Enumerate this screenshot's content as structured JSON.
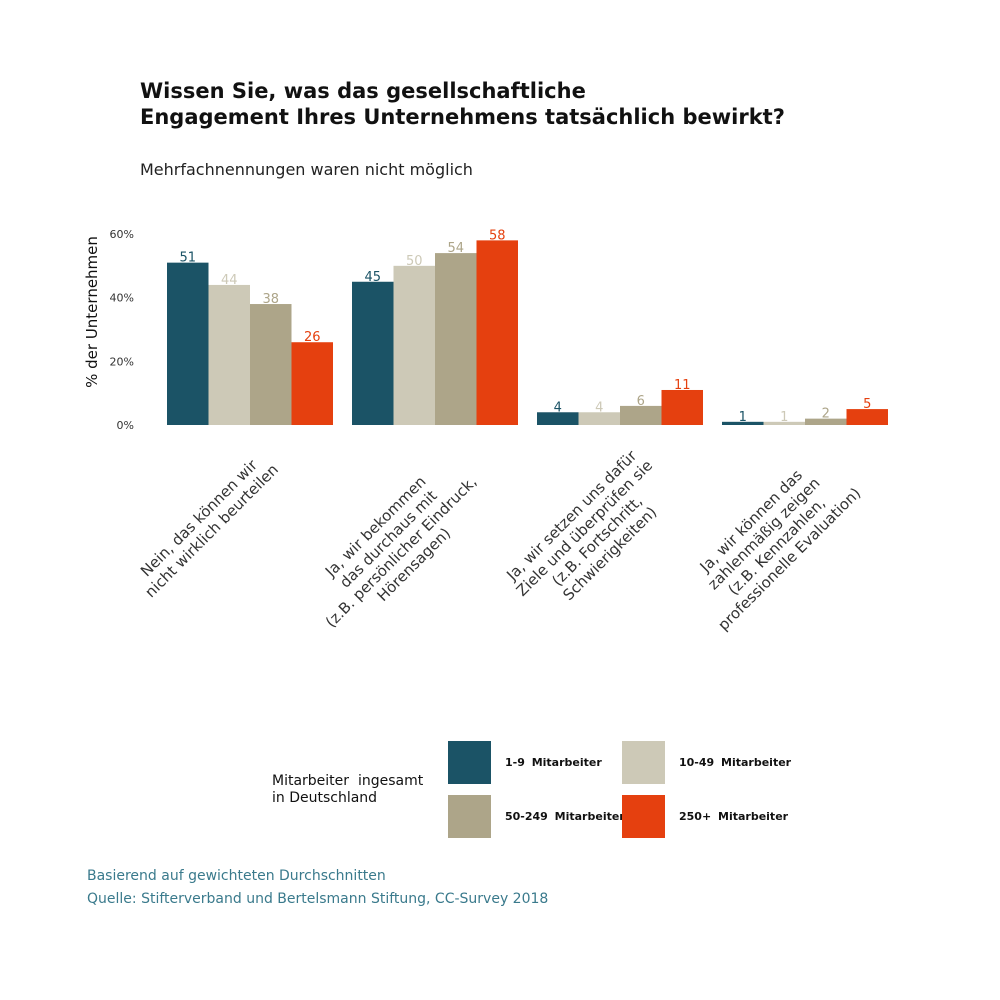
{
  "header": {
    "title_line1": "Wissen Sie, was das gesellschaftliche",
    "title_line2": "Engagement Ihres Unternehmens tatsächlich bewirkt?",
    "subtitle": "Mehrfachnennungen waren nicht möglich"
  },
  "chart_data": {
    "type": "bar",
    "title": "Wissen Sie, was das gesellschaftliche Engagement Ihres Unternehmens tatsächlich bewirkt?",
    "subtitle": "Mehrfachnennungen waren nicht möglich",
    "xlabel": "",
    "ylabel": "% der Unternehmen",
    "ylim": [
      0,
      60
    ],
    "yticks": [
      0,
      20,
      40,
      60
    ],
    "ytick_labels": [
      "0%",
      "20%",
      "40%",
      "60%"
    ],
    "grid": false,
    "categories": [
      [
        "Nein, das können wir",
        "nicht wirklich beurteilen"
      ],
      [
        "Ja, wir bekommen",
        "das durchaus mit",
        "(z.B. persönlicher Eindruck,",
        "Hörensagen)"
      ],
      [
        "Ja, wir setzen uns dafür",
        "Ziele und überprüfen sie",
        "(z.B. Fortschritt,",
        "Schwierigkeiten)"
      ],
      [
        "Ja, wir können das",
        "zahlenmäßig zeigen",
        "(z.B. Kennzahlen,",
        "professionelle Evaluation)"
      ]
    ],
    "series": [
      {
        "name": "1-9 Mitarbeiter",
        "color": "#1b5366",
        "values": [
          51,
          45,
          4,
          1
        ]
      },
      {
        "name": "10-49 Mitarbeiter",
        "color": "#cdc9b7",
        "values": [
          44,
          50,
          4,
          1
        ]
      },
      {
        "name": "50-249 Mitarbeiter",
        "color": "#ada589",
        "values": [
          38,
          54,
          6,
          2
        ]
      },
      {
        "name": "250+ Mitarbeiter",
        "color": "#e5400f",
        "values": [
          26,
          58,
          11,
          5
        ]
      }
    ],
    "legend": {
      "title_line1": "Mitarbeiter  ingesamt",
      "title_line2": "in Deutschland",
      "placement": "bottom"
    }
  },
  "footer": {
    "note": "Basierend auf gewichteten Durchschnitten",
    "source": "Quelle: Stifterverband und Bertelsmann Stiftung, CC-Survey 2018"
  }
}
